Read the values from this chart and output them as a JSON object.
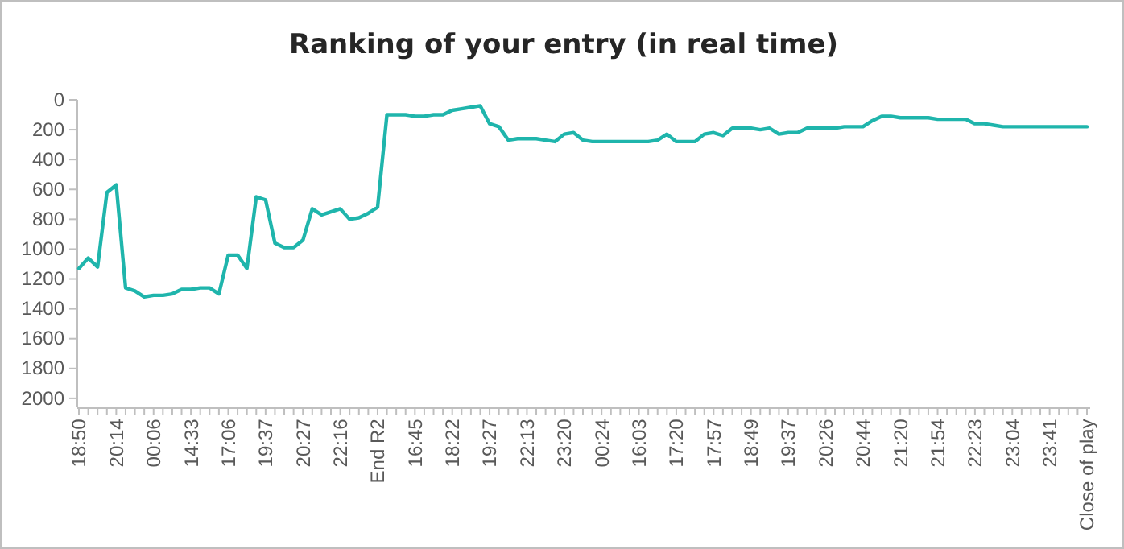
{
  "chart_data": {
    "type": "line",
    "title": "Ranking of your entry (in real time)",
    "categories": [
      "18:50",
      null,
      null,
      null,
      "20:14",
      null,
      null,
      null,
      "00:06",
      null,
      null,
      null,
      "14:33",
      null,
      null,
      null,
      "17:06",
      null,
      null,
      null,
      "19:37",
      null,
      null,
      null,
      "20:27",
      null,
      null,
      null,
      "22:16",
      null,
      null,
      null,
      "End R2",
      null,
      null,
      null,
      "16:45",
      null,
      null,
      null,
      "18:22",
      null,
      null,
      null,
      "19:27",
      null,
      null,
      null,
      "22:13",
      null,
      null,
      null,
      "23:20",
      null,
      null,
      null,
      "00:24",
      null,
      null,
      null,
      "16:03",
      null,
      null,
      null,
      "17:20",
      null,
      null,
      null,
      "17:57",
      null,
      null,
      null,
      "18:49",
      null,
      null,
      null,
      "19:37",
      null,
      null,
      null,
      "20:26",
      null,
      null,
      null,
      "20:44",
      null,
      null,
      null,
      "21:20",
      null,
      null,
      null,
      "21:54",
      null,
      null,
      null,
      "22:23",
      null,
      null,
      null,
      "23:04",
      null,
      null,
      null,
      "23:41",
      null,
      null,
      null,
      "Close of play"
    ],
    "series": [
      {
        "color": "#1fb5ac",
        "values": [
          1130,
          1060,
          1120,
          620,
          570,
          1260,
          1280,
          1320,
          1310,
          1310,
          1300,
          1270,
          1270,
          1260,
          1260,
          1300,
          1040,
          1040,
          1130,
          650,
          670,
          960,
          990,
          990,
          940,
          730,
          770,
          750,
          730,
          800,
          790,
          760,
          720,
          100,
          100,
          100,
          110,
          110,
          100,
          100,
          70,
          60,
          50,
          40,
          160,
          180,
          270,
          260,
          260,
          260,
          270,
          280,
          230,
          220,
          270,
          280,
          280,
          280,
          280,
          280,
          280,
          280,
          270,
          230,
          280,
          280,
          280,
          230,
          220,
          240,
          190,
          190,
          190,
          200,
          190,
          230,
          220,
          220,
          190,
          190,
          190,
          190,
          180,
          180,
          180,
          140,
          110,
          110,
          120,
          120,
          120,
          120,
          130,
          130,
          130,
          130,
          160,
          160,
          170,
          180,
          180,
          180,
          180,
          180,
          180,
          180,
          180,
          180,
          180
        ]
      }
    ],
    "ylim": [
      2060,
      0
    ],
    "yticks": [
      0,
      200,
      400,
      600,
      800,
      1000,
      1200,
      1400,
      1600,
      1800,
      2000
    ],
    "grid": false,
    "marker": "none",
    "line_style": "solid"
  }
}
